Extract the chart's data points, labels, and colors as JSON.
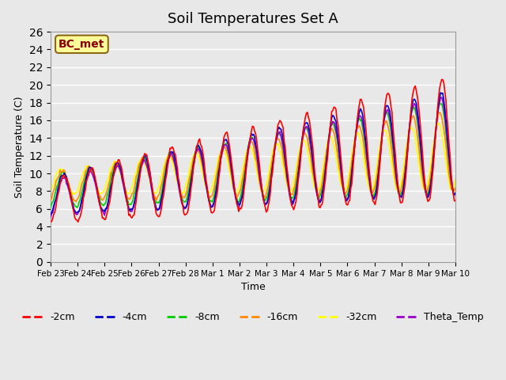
{
  "title": "Soil Temperatures Set A",
  "xlabel": "Time",
  "ylabel": "Soil Temperature (C)",
  "ylim": [
    0,
    26
  ],
  "yticks": [
    0,
    2,
    4,
    6,
    8,
    10,
    12,
    14,
    16,
    18,
    20,
    22,
    24,
    26
  ],
  "annotation": "BC_met",
  "annotation_color": "#8B0000",
  "annotation_bg": "#FFFF99",
  "series_colors": {
    "-2cm": "#FF0000",
    "-4cm": "#0000CC",
    "-8cm": "#00CC00",
    "-16cm": "#FF8800",
    "-32cm": "#FFFF00",
    "Theta_Temp": "#9900CC"
  },
  "background_color": "#E8E8E8",
  "plot_bg_color": "#E8E8E8",
  "grid_color": "#FFFFFF",
  "legend_ncol": 6,
  "xtick_labels": [
    "Feb 23",
    "Feb 24",
    "Feb 25",
    "Feb 26",
    "Feb 27",
    "Feb 28",
    "Mar 1",
    "Mar 2",
    "Mar 3",
    "Mar 4",
    "Mar 5",
    "Mar 6",
    "Mar 7",
    "Mar 8",
    "Mar 9",
    "Mar 10"
  ],
  "n_points_per_day": 24
}
